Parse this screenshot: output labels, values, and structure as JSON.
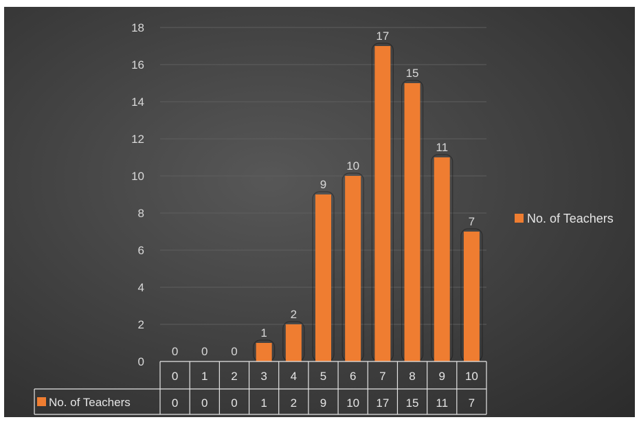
{
  "chart_data": {
    "type": "bar",
    "title": "",
    "xlabel": "",
    "ylabel": "",
    "categories": [
      "0",
      "1",
      "2",
      "3",
      "4",
      "5",
      "6",
      "7",
      "8",
      "9",
      "10"
    ],
    "series": [
      {
        "name": "No. of Teachers",
        "values": [
          0,
          0,
          0,
          1,
          2,
          9,
          10,
          17,
          15,
          11,
          7
        ]
      }
    ],
    "ylim": [
      0,
      18
    ],
    "yticks": [
      0,
      2,
      4,
      6,
      8,
      10,
      12,
      14,
      16,
      18
    ],
    "grid": true,
    "legend_position": "right",
    "data_table": true,
    "colors": {
      "bar": "#ef7d31",
      "background": "#404040",
      "text": "#d9d9d9",
      "grid": "#5e5e5e"
    }
  }
}
